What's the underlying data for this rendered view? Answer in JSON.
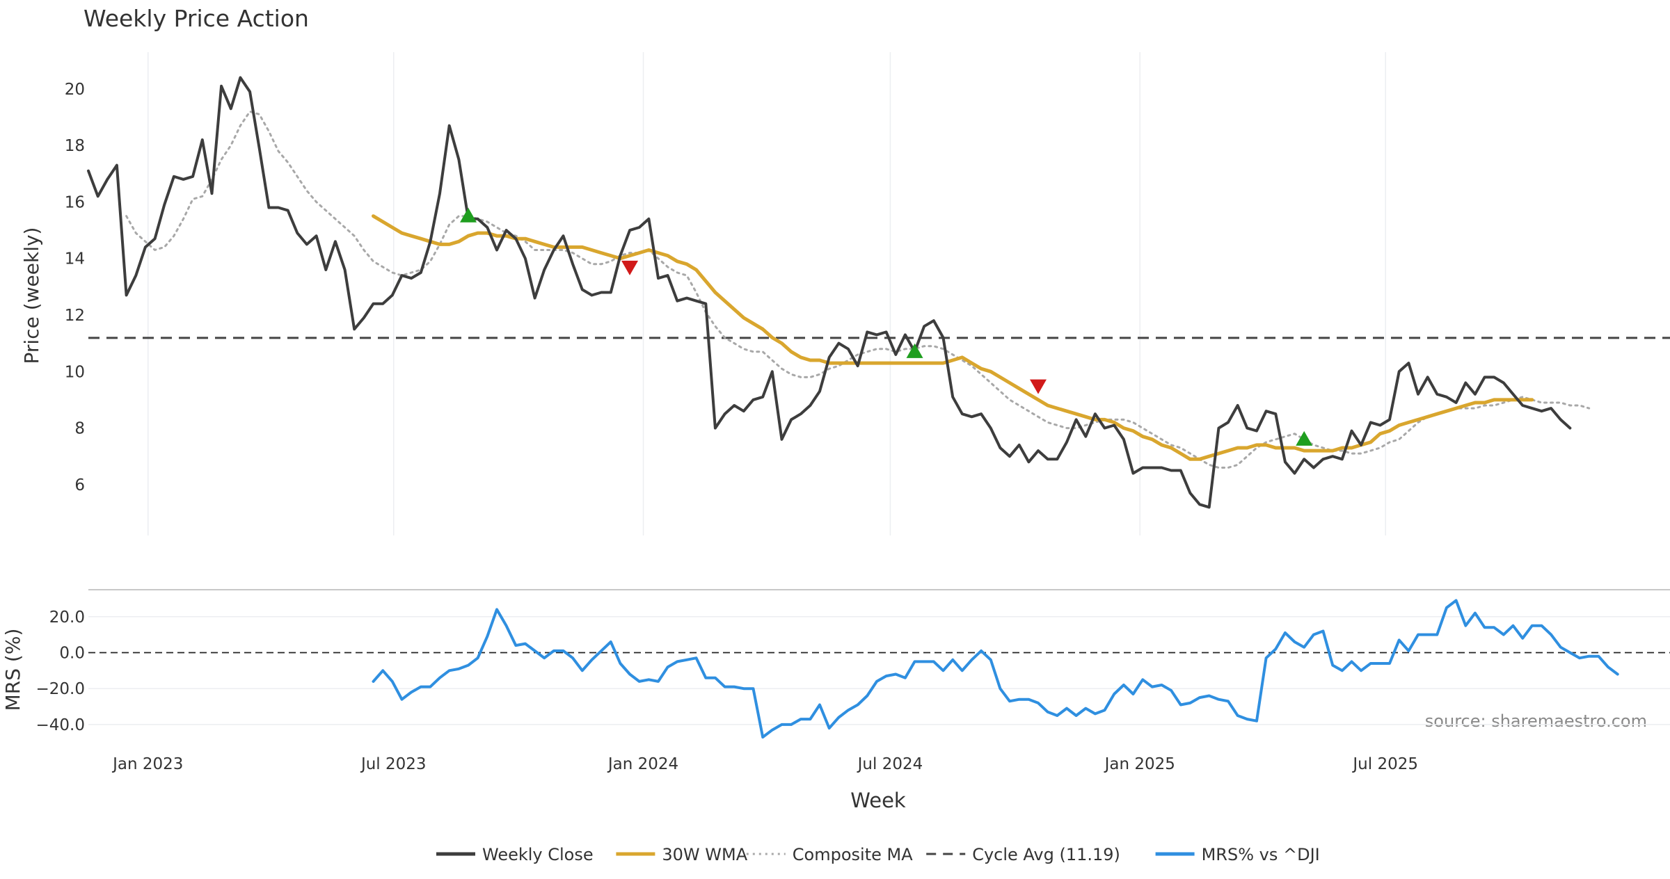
{
  "chart_data": [
    {
      "type": "line",
      "title": "Weekly Price Action",
      "ylabel": "Price (weekly)",
      "ylim": [
        4.2,
        21.3
      ],
      "yticks": [
        6,
        8,
        10,
        12,
        14,
        16,
        18,
        20
      ],
      "x_start": "2022-11-18",
      "x_step_days": 7,
      "cycle_avg": 11.19,
      "series": [
        {
          "name": "Weekly Close",
          "color": "#3d3d3d",
          "values": [
            17.1,
            16.2,
            16.8,
            17.3,
            12.7,
            13.4,
            14.4,
            14.7,
            15.9,
            16.9,
            16.8,
            16.9,
            18.2,
            16.3,
            20.1,
            19.3,
            20.4,
            19.9,
            17.9,
            15.8,
            15.8,
            15.7,
            14.9,
            14.5,
            14.8,
            13.6,
            14.6,
            13.6,
            11.5,
            11.9,
            12.4,
            12.4,
            12.7,
            13.4,
            13.3,
            13.5,
            14.6,
            16.3,
            18.7,
            17.5,
            15.4,
            15.4,
            15.1,
            14.3,
            15.0,
            14.7,
            14.0,
            12.6,
            13.6,
            14.3,
            14.8,
            13.8,
            12.9,
            12.7,
            12.8,
            12.8,
            14.1,
            15.0,
            15.1,
            15.4,
            13.3,
            13.4,
            12.5,
            12.6,
            12.5,
            12.4,
            8.0,
            8.5,
            8.8,
            8.6,
            9.0,
            9.1,
            10.0,
            7.6,
            8.3,
            8.5,
            8.8,
            9.3,
            10.5,
            11.0,
            10.8,
            10.2,
            11.4,
            11.3,
            11.4,
            10.6,
            11.3,
            10.7,
            11.6,
            11.8,
            11.2,
            9.1,
            8.5,
            8.4,
            8.5,
            8.0,
            7.3,
            7.0,
            7.4,
            6.8,
            7.2,
            6.9,
            6.9,
            7.5,
            8.3,
            7.7,
            8.5,
            8.0,
            8.1,
            7.6,
            6.4,
            6.6,
            6.6,
            6.6,
            6.5,
            6.5,
            5.7,
            5.3,
            5.2,
            8.0,
            8.2,
            8.8,
            8.0,
            7.9,
            8.6,
            8.5,
            6.8,
            6.4,
            6.9,
            6.6,
            6.9,
            7.0,
            6.9,
            7.9,
            7.4,
            8.2,
            8.1,
            8.3,
            10.0,
            10.3,
            9.2,
            9.8,
            9.2,
            9.1,
            8.9,
            9.6,
            9.2,
            9.8,
            9.8,
            9.6,
            9.2,
            8.8,
            8.7,
            8.6,
            8.7,
            8.3,
            8.0
          ]
        },
        {
          "name": "30W WMA",
          "color": "#d9a62e",
          "start_index": 30,
          "values": [
            15.5,
            15.3,
            15.1,
            14.9,
            14.8,
            14.7,
            14.6,
            14.5,
            14.5,
            14.6,
            14.8,
            14.9,
            14.9,
            14.8,
            14.8,
            14.7,
            14.7,
            14.6,
            14.5,
            14.4,
            14.4,
            14.4,
            14.4,
            14.3,
            14.2,
            14.1,
            14.0,
            14.1,
            14.2,
            14.3,
            14.2,
            14.1,
            13.9,
            13.8,
            13.6,
            13.2,
            12.8,
            12.5,
            12.2,
            11.9,
            11.7,
            11.5,
            11.2,
            11.0,
            10.7,
            10.5,
            10.4,
            10.4,
            10.3,
            10.3,
            10.3,
            10.3,
            10.3,
            10.3,
            10.3,
            10.3,
            10.3,
            10.3,
            10.3,
            10.3,
            10.3,
            10.4,
            10.5,
            10.3,
            10.1,
            10.0,
            9.8,
            9.6,
            9.4,
            9.2,
            9.0,
            8.8,
            8.7,
            8.6,
            8.5,
            8.4,
            8.3,
            8.3,
            8.2,
            8.0,
            7.9,
            7.7,
            7.6,
            7.4,
            7.3,
            7.1,
            6.9,
            6.9,
            7.0,
            7.1,
            7.2,
            7.3,
            7.3,
            7.4,
            7.4,
            7.3,
            7.3,
            7.3,
            7.2,
            7.2,
            7.2,
            7.2,
            7.3,
            7.3,
            7.4,
            7.5,
            7.8,
            7.9,
            8.1,
            8.2,
            8.3,
            8.4,
            8.5,
            8.6,
            8.7,
            8.8,
            8.9,
            8.9,
            9.0,
            9.0,
            9.0,
            9.0,
            9.0
          ]
        },
        {
          "name": "Composite MA",
          "color": "#a8a8a8",
          "start_index": 4,
          "values": [
            15.5,
            14.9,
            14.6,
            14.3,
            14.4,
            14.8,
            15.4,
            16.1,
            16.2,
            16.8,
            17.5,
            18.0,
            18.7,
            19.2,
            19.1,
            18.5,
            17.8,
            17.4,
            16.9,
            16.4,
            16.0,
            15.7,
            15.4,
            15.1,
            14.8,
            14.3,
            13.9,
            13.7,
            13.5,
            13.4,
            13.5,
            13.6,
            13.9,
            14.5,
            15.2,
            15.5,
            15.5,
            15.4,
            15.3,
            15.1,
            14.9,
            14.8,
            14.6,
            14.3,
            14.3,
            14.3,
            14.3,
            14.2,
            14.0,
            13.8,
            13.8,
            13.9,
            14.1,
            14.2,
            14.2,
            14.3,
            14.0,
            13.7,
            13.5,
            13.4,
            12.8,
            12.1,
            11.6,
            11.2,
            11.0,
            10.8,
            10.7,
            10.7,
            10.4,
            10.1,
            9.9,
            9.8,
            9.8,
            9.9,
            10.1,
            10.2,
            10.4,
            10.6,
            10.7,
            10.8,
            10.8,
            10.7,
            10.8,
            10.8,
            10.9,
            10.9,
            10.8,
            10.6,
            10.4,
            10.2,
            9.9,
            9.6,
            9.3,
            9.0,
            8.8,
            8.6,
            8.4,
            8.2,
            8.1,
            8.0,
            8.0,
            8.1,
            8.2,
            8.3,
            8.3,
            8.3,
            8.2,
            8.0,
            7.8,
            7.6,
            7.4,
            7.3,
            7.1,
            6.9,
            6.7,
            6.6,
            6.6,
            6.7,
            7.0,
            7.3,
            7.5,
            7.6,
            7.7,
            7.8,
            7.6,
            7.4,
            7.3,
            7.2,
            7.2,
            7.1,
            7.1,
            7.2,
            7.3,
            7.5,
            7.6,
            7.9,
            8.2,
            8.4,
            8.5,
            8.6,
            8.7,
            8.7,
            8.7,
            8.8,
            8.8,
            8.9,
            9.0,
            9.1,
            9.0,
            8.9,
            8.9,
            8.9,
            8.8,
            8.8,
            8.7
          ]
        }
      ],
      "markers": [
        {
          "type": "buy",
          "index": 40,
          "value": 15.5
        },
        {
          "type": "sell",
          "index": 57,
          "value": 13.7
        },
        {
          "type": "buy",
          "index": 87,
          "value": 10.7
        },
        {
          "type": "sell",
          "index": 100,
          "value": 9.5
        },
        {
          "type": "buy",
          "index": 128,
          "value": 7.6
        }
      ]
    },
    {
      "type": "line",
      "ylabel": "MRS (%)",
      "xlabel": "Week",
      "ylim": [
        -47,
        35
      ],
      "yticks": [
        20.0,
        0.0,
        -20.0,
        -40.0
      ],
      "ytick_labels": [
        "20.0",
        "0.0",
        "−20.0",
        "−40.0"
      ],
      "zero_line": 0,
      "series": [
        {
          "name": "MRS% vs ^DJI",
          "color": "#2f8fe0",
          "start_index": 30,
          "values": [
            -16,
            -10,
            -16,
            -26,
            -22,
            -19,
            -19,
            -14,
            -10,
            -9,
            -7,
            -3,
            9,
            24,
            15,
            4,
            5,
            1,
            -3,
            1,
            1,
            -3,
            -10,
            -4,
            1,
            6,
            -6,
            -12,
            -16,
            -15,
            -16,
            -8,
            -5,
            -4,
            -3,
            -14,
            -14,
            -19,
            -19,
            -20,
            -20,
            -47,
            -43,
            -40,
            -40,
            -37,
            -37,
            -29,
            -42,
            -36,
            -32,
            -29,
            -24,
            -16,
            -13,
            -12,
            -14,
            -5,
            -5,
            -5,
            -10,
            -4,
            -10,
            -4,
            1,
            -4,
            -20,
            -27,
            -26,
            -26,
            -28,
            -33,
            -35,
            -31,
            -35,
            -31,
            -34,
            -32,
            -23,
            -18,
            -23,
            -15,
            -19,
            -18,
            -21,
            -29,
            -28,
            -25,
            -24,
            -26,
            -27,
            -35,
            -37,
            -38,
            -3,
            2,
            11,
            6,
            3,
            10,
            12,
            -7,
            -10,
            -5,
            -10,
            -6,
            -6,
            -6,
            7,
            1,
            10,
            10,
            10,
            25,
            29,
            15,
            22,
            14,
            14,
            10,
            15,
            8,
            15,
            15,
            10,
            3,
            0,
            -3,
            -2,
            -2,
            -8,
            -12
          ]
        }
      ],
      "xticks": [
        {
          "label": "Jan 2023",
          "date": "2023-01-01"
        },
        {
          "label": "Jul 2023",
          "date": "2023-07-01"
        },
        {
          "label": "Jan 2024",
          "date": "2024-01-01"
        },
        {
          "label": "Jul 2024",
          "date": "2024-07-01"
        },
        {
          "label": "Jan 2025",
          "date": "2025-01-01"
        },
        {
          "label": "Jul 2025",
          "date": "2025-07-01"
        }
      ],
      "annotation": "source: sharemaestro.com"
    }
  ],
  "legend": {
    "placement": "bottom-center",
    "items": [
      {
        "label": "Weekly Close",
        "style": "solid",
        "color": "#3d3d3d"
      },
      {
        "label": "30W WMA",
        "style": "solid",
        "color": "#d9a62e"
      },
      {
        "label": "Composite MA",
        "style": "dotted",
        "color": "#a8a8a8"
      },
      {
        "label": "Cycle Avg (11.19)",
        "style": "dashed",
        "color": "#444444"
      },
      {
        "label": "MRS% vs ^DJI",
        "style": "solid",
        "color": "#2f8fe0"
      }
    ]
  },
  "colors": {
    "buy": "#1f9e1f",
    "sell": "#d11a1a",
    "grid": "#eceef1",
    "axis_text": "#333333"
  }
}
